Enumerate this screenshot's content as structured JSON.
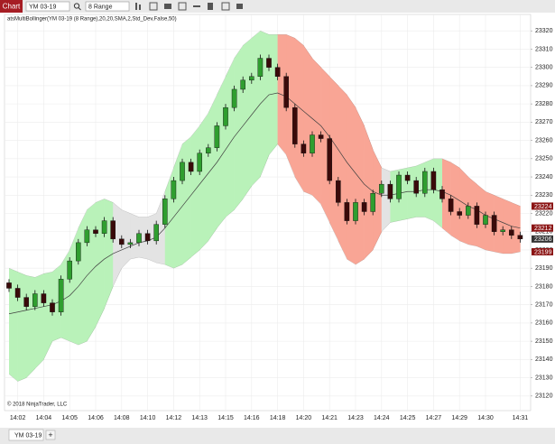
{
  "window": {
    "title": "Chart",
    "instrument": "YM 03-19",
    "period": "8 Range",
    "tab": "YM 03-19",
    "add_tab": "+"
  },
  "chart_data": {
    "type": "candlestick",
    "title": "atsMultiBollinger(YM 03-19 (8 Range),20,20,SMA,2,Std_Dev,False,50)",
    "annotation": "© 2018 NinjaTrader, LLC",
    "categories": [
      null,
      "14:02",
      null,
      null,
      "14:04",
      null,
      null,
      "14:05",
      null,
      null,
      "14:06",
      null,
      null,
      "14:08",
      null,
      null,
      "14:10",
      null,
      null,
      "14:12",
      null,
      null,
      "14:13",
      null,
      null,
      "14:15",
      null,
      null,
      "14:16",
      null,
      null,
      "14:18",
      null,
      null,
      "14:20",
      null,
      null,
      "14:21",
      null,
      null,
      "14:23",
      null,
      null,
      "14:24",
      null,
      null,
      "14:25",
      null,
      null,
      "14:27",
      null,
      null,
      "14:29",
      null,
      null,
      "14:30",
      null,
      null,
      null,
      "14:31"
    ],
    "open": [
      23182,
      23179,
      23174,
      23169,
      23176,
      23171,
      23166,
      23184,
      23194,
      23204,
      23211,
      23209,
      23216,
      23206,
      23203,
      23204,
      23209,
      23205,
      23214,
      23228,
      23238,
      23248,
      23243,
      23253,
      23256,
      23268,
      23278,
      23288,
      23293,
      23295,
      23305,
      23300,
      23295,
      23278,
      23258,
      23253,
      23263,
      23261,
      23238,
      23226,
      23216,
      23226,
      23221,
      23231,
      23236,
      23228,
      23241,
      23238,
      23231,
      23243,
      23233,
      23228,
      23221,
      23219,
      23224,
      23214,
      23219,
      23210,
      23211,
      23208
    ],
    "high": [
      23184,
      23181,
      23176,
      23178,
      23178,
      23173,
      23186,
      23196,
      23206,
      23213,
      23213,
      23218,
      23218,
      23208,
      23206,
      23211,
      23211,
      23216,
      23230,
      23240,
      23250,
      23250,
      23255,
      23258,
      23270,
      23280,
      23290,
      23295,
      23297,
      23307,
      23307,
      23302,
      23297,
      23280,
      23260,
      23265,
      23265,
      23263,
      23240,
      23228,
      23228,
      23228,
      23233,
      23238,
      23238,
      23243,
      23243,
      23240,
      23245,
      23245,
      23235,
      23230,
      23223,
      23226,
      23226,
      23221,
      23221,
      23213,
      23213,
      23210
    ],
    "low": [
      23177,
      23172,
      23167,
      23167,
      23169,
      23164,
      23164,
      23182,
      23192,
      23202,
      23207,
      23207,
      23204,
      23201,
      23201,
      23202,
      23203,
      23203,
      23212,
      23226,
      23236,
      23241,
      23241,
      23251,
      23254,
      23266,
      23276,
      23286,
      23291,
      23293,
      23298,
      23293,
      23276,
      23256,
      23251,
      23251,
      23259,
      23236,
      23224,
      23214,
      23214,
      23219,
      23219,
      23229,
      23226,
      23226,
      23236,
      23229,
      23229,
      23231,
      23226,
      23219,
      23217,
      23217,
      23212,
      23212,
      23208,
      23208,
      23206,
      23204
    ],
    "close": [
      23179,
      23174,
      23169,
      23176,
      23171,
      23166,
      23184,
      23194,
      23204,
      23211,
      23209,
      23216,
      23206,
      23203,
      23204,
      23209,
      23205,
      23214,
      23228,
      23238,
      23248,
      23243,
      23253,
      23256,
      23268,
      23278,
      23288,
      23293,
      23295,
      23305,
      23300,
      23295,
      23278,
      23258,
      23253,
      23263,
      23261,
      23238,
      23226,
      23216,
      23226,
      23221,
      23231,
      23236,
      23228,
      23241,
      23238,
      23231,
      23243,
      23233,
      23228,
      23221,
      23219,
      23224,
      23214,
      23219,
      23210,
      23211,
      23208,
      23206
    ],
    "up_color": "#2f9e2f",
    "down_color": "#3a0a0a",
    "close_marker_color": "#333333",
    "bands": {
      "upper": [
        23190,
        23188,
        23186,
        23185,
        23187,
        23188,
        23192,
        23200,
        23212,
        23222,
        23226,
        23228,
        23226,
        23222,
        23220,
        23218,
        23218,
        23220,
        23232,
        23245,
        23258,
        23262,
        23268,
        23275,
        23285,
        23295,
        23305,
        23312,
        23316,
        23320,
        23318,
        23318,
        23318,
        23316,
        23312,
        23305,
        23300,
        23295,
        23290,
        23285,
        23278,
        23268,
        23255,
        23245,
        23243,
        23244,
        23245,
        23246,
        23248,
        23250,
        23250,
        23248,
        23245,
        23240,
        23236,
        23232,
        23230,
        23228,
        23226,
        23224
      ],
      "middle": [
        23165,
        23166,
        23167,
        23168,
        23169,
        23170,
        23172,
        23175,
        23180,
        23186,
        23191,
        23195,
        23198,
        23200,
        23202,
        23204,
        23205,
        23207,
        23212,
        23218,
        23224,
        23230,
        23236,
        23242,
        23248,
        23255,
        23262,
        23268,
        23274,
        23280,
        23285,
        23286,
        23284,
        23280,
        23276,
        23272,
        23268,
        23262,
        23255,
        23248,
        23242,
        23236,
        23232,
        23230,
        23230,
        23231,
        23232,
        23232,
        23233,
        23233,
        23232,
        23230,
        23227,
        23224,
        23222,
        23219,
        23217,
        23215,
        23213,
        23212
      ],
      "lower": [
        23132,
        23128,
        23130,
        23135,
        23140,
        23150,
        23152,
        23150,
        23148,
        23150,
        23158,
        23168,
        23180,
        23190,
        23195,
        23196,
        23195,
        23193,
        23192,
        23190,
        23192,
        23196,
        23200,
        23205,
        23212,
        23218,
        23222,
        23228,
        23235,
        23240,
        23252,
        23258,
        23252,
        23240,
        23232,
        23230,
        23225,
        23215,
        23205,
        23195,
        23192,
        23195,
        23200,
        23210,
        23215,
        23216,
        23217,
        23218,
        23218,
        23216,
        23212,
        23208,
        23205,
        23203,
        23202,
        23200,
        23199,
        23198,
        23198,
        23199
      ],
      "fill_colors": [
        "#b9f2b9",
        "#b9f2b9",
        "#b9f2b9",
        "#b9f2b9",
        "#b9f2b9",
        "#b9f2b9",
        "#b9f2b9",
        "#b9f2b9",
        "#b9f2b9",
        "#b9f2b9",
        "#b9f2b9",
        "#b9f2b9",
        "#e3e3e3",
        "#e3e3e3",
        "#e3e3e3",
        "#e3e3e3",
        "#e3e3e3",
        "#e3e3e3",
        "#b9f2b9",
        "#b9f2b9",
        "#b9f2b9",
        "#b9f2b9",
        "#b9f2b9",
        "#b9f2b9",
        "#b9f2b9",
        "#b9f2b9",
        "#b9f2b9",
        "#b9f2b9",
        "#b9f2b9",
        "#b9f2b9",
        "#b9f2b9",
        "#f9a595",
        "#f9a595",
        "#f9a595",
        "#f9a595",
        "#f9a595",
        "#f9a595",
        "#f9a595",
        "#f9a595",
        "#f9a595",
        "#f9a595",
        "#f9a595",
        "#f9a595",
        "#e3e3e3",
        "#b9f2b9",
        "#b9f2b9",
        "#b9f2b9",
        "#b9f2b9",
        "#b9f2b9",
        "#b9f2b9",
        "#f9a595",
        "#f9a595",
        "#f9a595",
        "#f9a595",
        "#f9a595",
        "#f9a595",
        "#f9a595",
        "#f9a595",
        "#f9a595",
        "#f9a595"
      ],
      "line_color": "#404040",
      "marker_color": "#8b1414"
    },
    "ylim": [
      23112,
      23329
    ],
    "yticks": [
      23120,
      23130,
      23140,
      23150,
      23160,
      23170,
      23180,
      23190,
      23200,
      23210,
      23220,
      23230,
      23240,
      23250,
      23260,
      23270,
      23280,
      23290,
      23300,
      23310,
      23320
    ],
    "grid": true
  }
}
